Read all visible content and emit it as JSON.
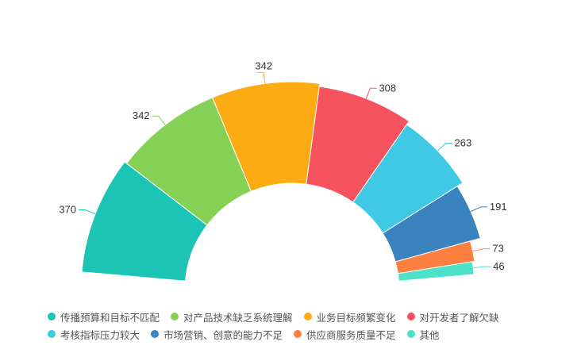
{
  "chart_data": {
    "type": "pie",
    "variant": "half-donut",
    "categories": [
      "传播预算和目标不匹配",
      "对产品技术缺乏系统理解",
      "业务目标频繁变化",
      "对开发者了解欠缺",
      "考核指标压力较大",
      "市场营销、创意的能力不足",
      "供应商服务质量不足",
      "其他"
    ],
    "values": [
      370,
      342,
      342,
      308,
      263,
      191,
      73,
      46
    ],
    "colors": [
      "#1bc4b5",
      "#85d155",
      "#fdab13",
      "#f7535f",
      "#40c9e4",
      "#3a83be",
      "#fe8040",
      "#4de2c7"
    ],
    "legend_position": "bottom"
  }
}
